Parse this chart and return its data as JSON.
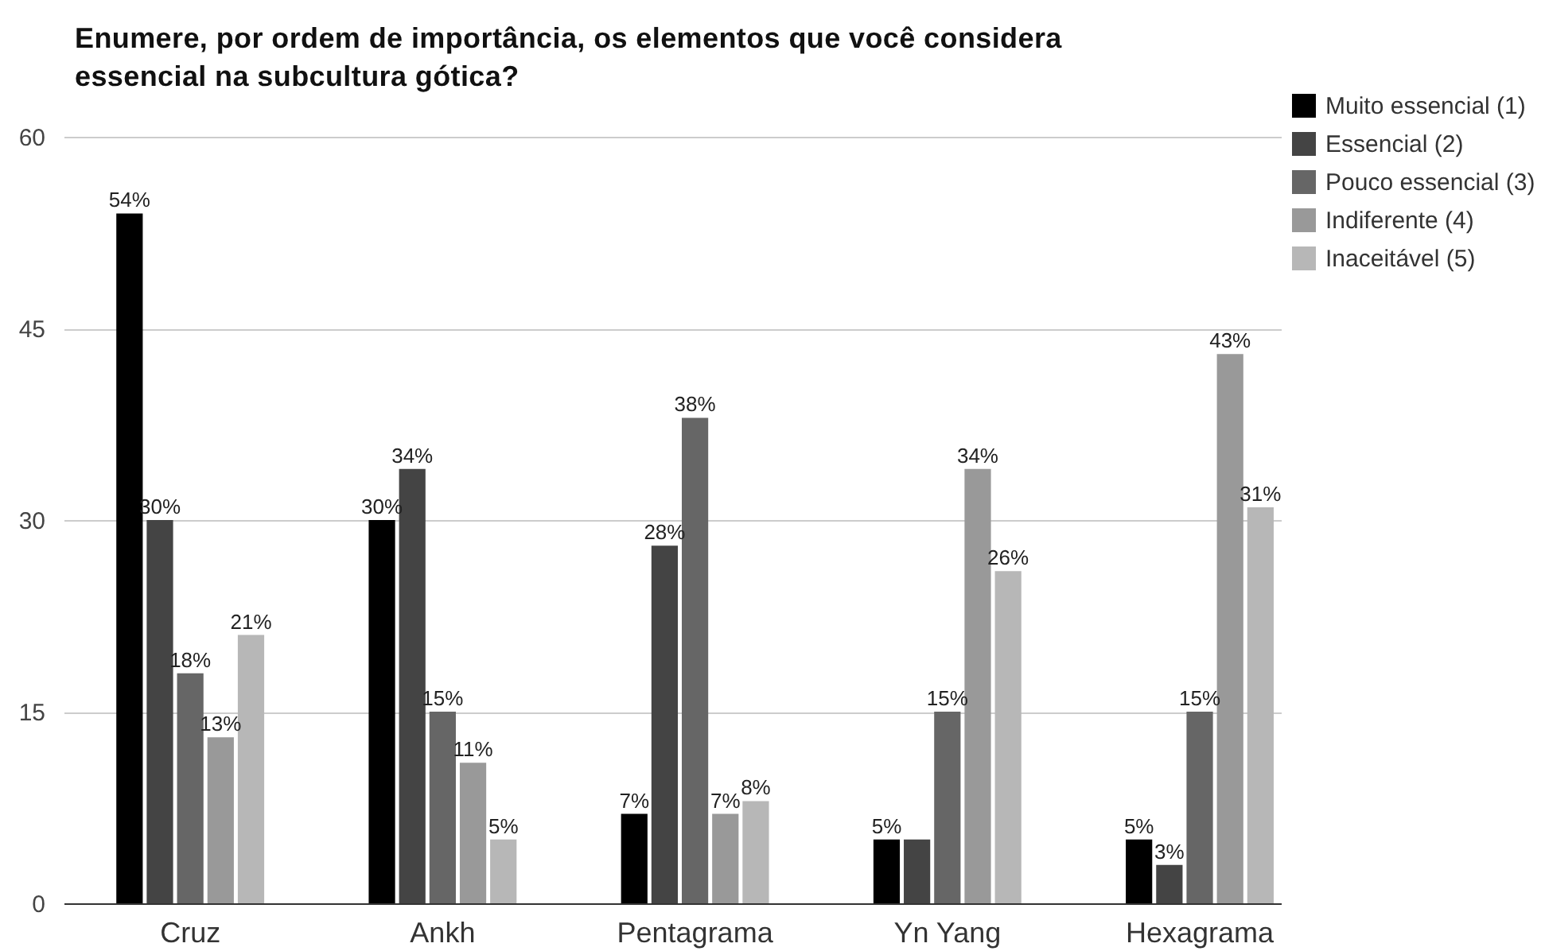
{
  "chart_data": {
    "type": "bar",
    "title": "Enumere, por ordem de importância, os elementos que você considera essencial na subcultura gótica?",
    "categories": [
      "Cruz",
      "Ankh",
      "Pentagrama",
      "Yn Yang",
      "Hexagrama"
    ],
    "series": [
      {
        "name": "Muito essencial (1)",
        "color": "#000000",
        "values": [
          54,
          30,
          7,
          5,
          5
        ],
        "value_labels": [
          "54%",
          "30%",
          "7%",
          "5%",
          "5%"
        ]
      },
      {
        "name": "Essencial (2)",
        "color": "#444444",
        "values": [
          30,
          34,
          28,
          5,
          3
        ],
        "value_labels": [
          "30%",
          "34%",
          "28%",
          null,
          "3%"
        ]
      },
      {
        "name": "Pouco essencial (3)",
        "color": "#666666",
        "values": [
          18,
          15,
          38,
          15,
          15
        ],
        "value_labels": [
          "18%",
          "15%",
          "38%",
          "15%",
          "15%"
        ]
      },
      {
        "name": "Indiferente (4)",
        "color": "#999999",
        "values": [
          13,
          11,
          7,
          34,
          43
        ],
        "value_labels": [
          "13%",
          "11%",
          "7%",
          "34%",
          "43%"
        ]
      },
      {
        "name": "Inaceitável (5)",
        "color": "#b7b7b7",
        "values": [
          21,
          5,
          8,
          26,
          31
        ],
        "value_labels": [
          "21%",
          "5%",
          "8%",
          "26%",
          "31%"
        ]
      }
    ],
    "ylim": [
      0,
      60
    ],
    "yticks": [
      0,
      15,
      30,
      45,
      60
    ],
    "grid": "y",
    "legend": "top right"
  }
}
